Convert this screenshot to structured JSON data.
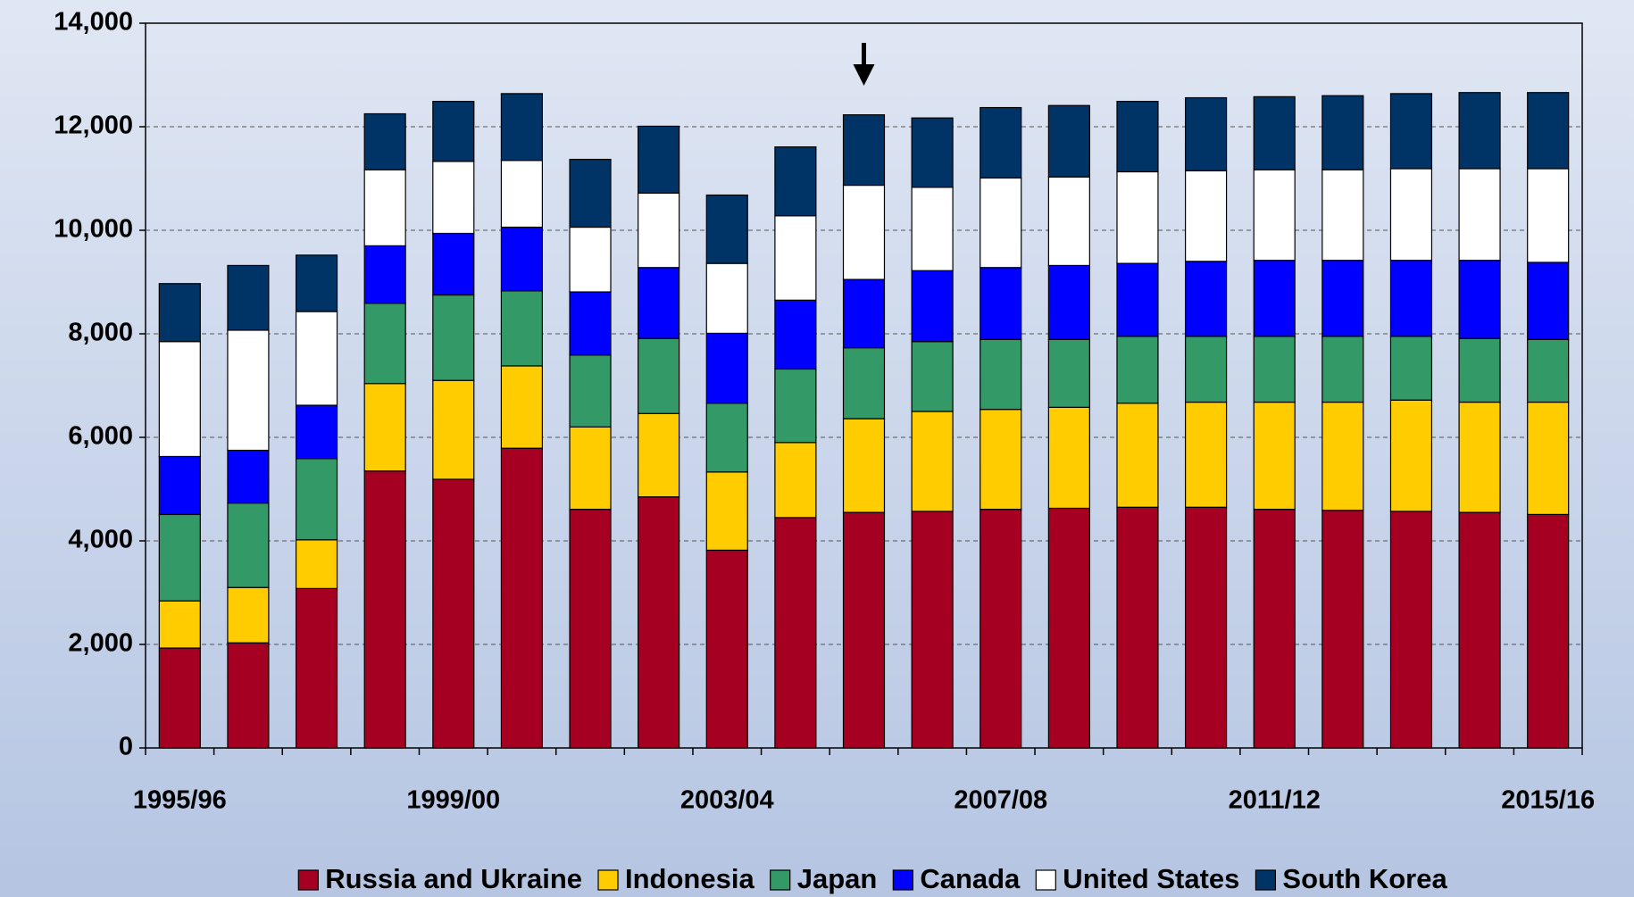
{
  "chart_data": {
    "type": "stacked_bar",
    "categories": [
      "1995/96",
      null,
      null,
      null,
      "1999/00",
      null,
      null,
      null,
      "2003/04",
      null,
      null,
      null,
      "2007/08",
      null,
      null,
      null,
      "2011/12",
      null,
      null,
      null,
      "2015/16"
    ],
    "series": [
      {
        "name": "Russia and Ukraine",
        "color": "#a50021",
        "values": [
          1930,
          2030,
          3080,
          5350,
          5190,
          5790,
          4610,
          4850,
          3820,
          4450,
          4550,
          4570,
          4610,
          4630,
          4650,
          4650,
          4610,
          4590,
          4570,
          4550,
          4510
        ]
      },
      {
        "name": "Indonesia",
        "color": "#ffcc00",
        "values": [
          910,
          1070,
          940,
          1690,
          1910,
          1590,
          1590,
          1610,
          1510,
          1450,
          1810,
          1930,
          1930,
          1950,
          2010,
          2030,
          2070,
          2090,
          2150,
          2130,
          2170
        ]
      },
      {
        "name": "Japan",
        "color": "#339966",
        "values": [
          1670,
          1630,
          1570,
          1550,
          1650,
          1450,
          1390,
          1450,
          1330,
          1420,
          1370,
          1350,
          1350,
          1310,
          1290,
          1270,
          1270,
          1270,
          1230,
          1230,
          1210
        ]
      },
      {
        "name": "Canada",
        "color": "#0000ff",
        "values": [
          1120,
          1020,
          1030,
          1110,
          1190,
          1230,
          1220,
          1370,
          1350,
          1330,
          1320,
          1370,
          1390,
          1430,
          1410,
          1450,
          1470,
          1470,
          1470,
          1510,
          1490
        ]
      },
      {
        "name": "United States",
        "color": "#ffffff",
        "values": [
          2220,
          2320,
          1810,
          1470,
          1390,
          1290,
          1250,
          1440,
          1350,
          1630,
          1820,
          1610,
          1730,
          1710,
          1770,
          1750,
          1750,
          1750,
          1770,
          1770,
          1810
        ]
      },
      {
        "name": "South Korea",
        "color": "#003366",
        "values": [
          1120,
          1250,
          1090,
          1080,
          1160,
          1290,
          1310,
          1290,
          1320,
          1330,
          1360,
          1340,
          1360,
          1380,
          1360,
          1410,
          1410,
          1430,
          1450,
          1470,
          1470
        ]
      }
    ],
    "ylim": [
      0,
      14000
    ],
    "yticks": [
      0,
      {
        "value": 2000,
        "label": "2,000"
      },
      {
        "value": 4000,
        "label": "4,000"
      },
      {
        "value": 6000,
        "label": "6,000"
      },
      {
        "value": 8000,
        "label": "8,000"
      },
      {
        "value": 10000,
        "label": "10,000"
      },
      {
        "value": 12000,
        "label": "12,000"
      },
      {
        "value": 14000,
        "label": "14,000"
      }
    ],
    "grid": true,
    "legend": "bottom"
  }
}
